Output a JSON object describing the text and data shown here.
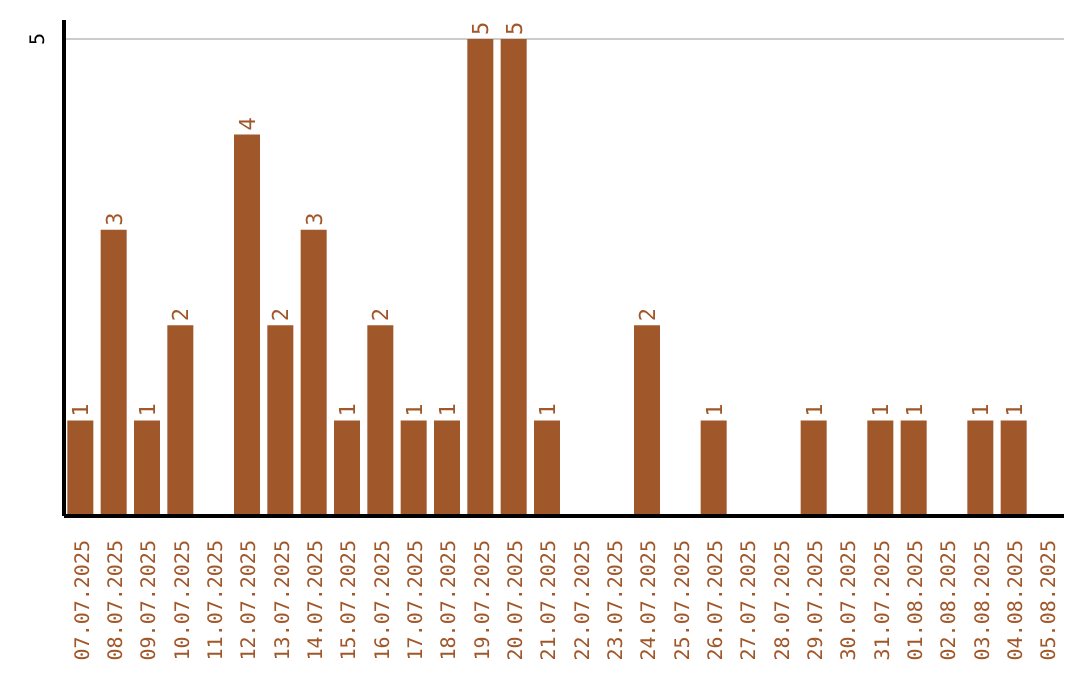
{
  "chart_data": {
    "type": "bar",
    "categories": [
      "07.07.2025",
      "08.07.2025",
      "09.07.2025",
      "10.07.2025",
      "11.07.2025",
      "12.07.2025",
      "13.07.2025",
      "14.07.2025",
      "15.07.2025",
      "16.07.2025",
      "17.07.2025",
      "18.07.2025",
      "19.07.2025",
      "20.07.2025",
      "21.07.2025",
      "22.07.2025",
      "23.07.2025",
      "24.07.2025",
      "25.07.2025",
      "26.07.2025",
      "27.07.2025",
      "28.07.2025",
      "29.07.2025",
      "30.07.2025",
      "31.07.2025",
      "01.08.2025",
      "02.08.2025",
      "03.08.2025",
      "04.08.2025",
      "05.08.2025"
    ],
    "values": [
      1,
      3,
      1,
      2,
      0,
      4,
      2,
      3,
      1,
      2,
      1,
      1,
      5,
      5,
      1,
      0,
      0,
      2,
      0,
      1,
      0,
      0,
      1,
      0,
      1,
      1,
      0,
      1,
      1,
      0
    ],
    "value_labels": [
      "1",
      "3",
      "1",
      "2",
      null,
      "4",
      "2",
      "3",
      "1",
      "2",
      "1",
      "1",
      "5",
      "5",
      "1",
      null,
      null,
      "2",
      null,
      "1",
      null,
      null,
      "1",
      null,
      "1",
      "1",
      null,
      "1",
      "1",
      null
    ],
    "color": "#a0572a",
    "ylim": [
      0,
      5.2
    ],
    "yticks": [
      5
    ],
    "grid": "y"
  }
}
